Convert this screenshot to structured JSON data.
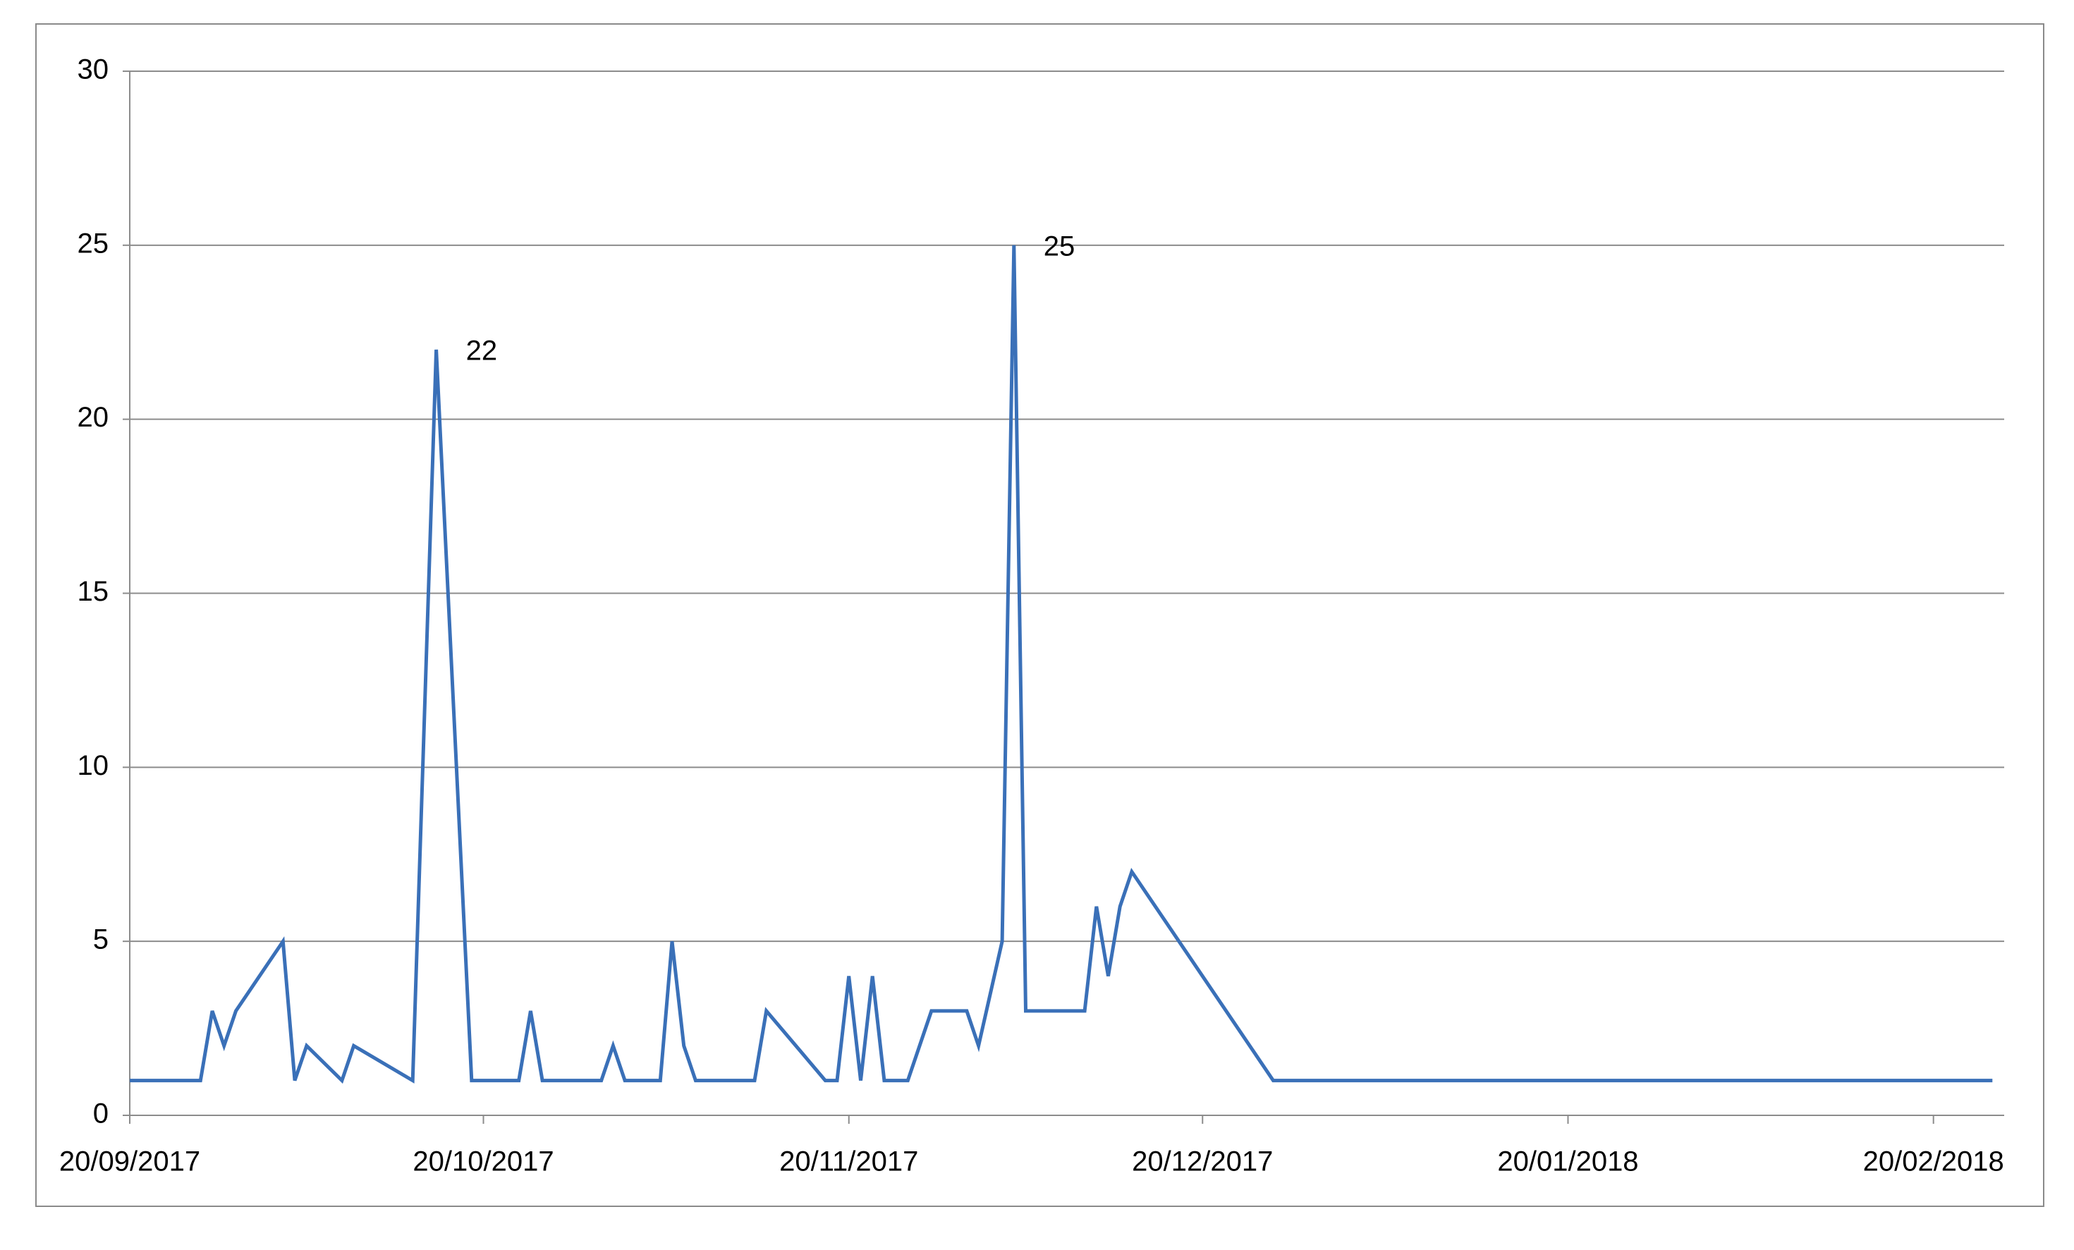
{
  "chart_data": {
    "type": "line",
    "x": [
      "2017-09-20",
      "2017-09-26",
      "2017-09-27",
      "2017-09-28",
      "2017-09-29",
      "2017-10-03",
      "2017-10-04",
      "2017-10-05",
      "2017-10-08",
      "2017-10-09",
      "2017-10-14",
      "2017-10-16",
      "2017-10-19",
      "2017-10-23",
      "2017-10-24",
      "2017-10-25",
      "2017-10-30",
      "2017-10-31",
      "2017-11-01",
      "2017-11-04",
      "2017-11-05",
      "2017-11-06",
      "2017-11-07",
      "2017-11-12",
      "2017-11-13",
      "2017-11-18",
      "2017-11-19",
      "2017-11-20",
      "2017-11-21",
      "2017-11-22",
      "2017-11-23",
      "2017-11-25",
      "2017-11-27",
      "2017-11-30",
      "2017-12-01",
      "2017-12-03",
      "2017-12-04",
      "2017-12-05",
      "2017-12-10",
      "2017-12-11",
      "2017-12-12",
      "2017-12-13",
      "2017-12-14",
      "2017-12-26",
      "2018-02-25"
    ],
    "values": [
      1,
      1,
      3,
      2,
      3,
      5,
      1,
      2,
      1,
      2,
      1,
      22,
      1,
      1,
      3,
      1,
      1,
      2,
      1,
      1,
      5,
      2,
      1,
      1,
      3,
      1,
      1,
      4,
      1,
      4,
      1,
      1,
      3,
      3,
      2,
      5,
      25,
      3,
      3,
      6,
      4,
      6,
      7,
      1,
      1
    ],
    "value_labels": [
      null,
      null,
      null,
      null,
      null,
      null,
      null,
      null,
      null,
      null,
      null,
      "22",
      null,
      null,
      null,
      null,
      null,
      null,
      null,
      null,
      null,
      null,
      null,
      null,
      null,
      null,
      null,
      null,
      null,
      null,
      null,
      null,
      null,
      null,
      null,
      null,
      "25",
      null,
      null,
      null,
      null,
      null,
      null,
      null,
      null
    ],
    "color": "#3a70b8",
    "xlim": [
      "2017-09-20",
      "2018-02-26"
    ],
    "xticks": [
      {
        "value": "2017-09-20",
        "label": "20/09/2017"
      },
      {
        "value": "2017-10-20",
        "label": "20/10/2017"
      },
      {
        "value": "2017-11-20",
        "label": "20/11/2017"
      },
      {
        "value": "2017-12-20",
        "label": "20/12/2017"
      },
      {
        "value": "2018-01-20",
        "label": "20/01/2018"
      },
      {
        "value": "2018-02-20",
        "label": "20/02/2018"
      }
    ],
    "ylim": [
      0,
      30
    ],
    "yticks": [
      0,
      5,
      10,
      15,
      20,
      25,
      30
    ],
    "grid": true
  }
}
